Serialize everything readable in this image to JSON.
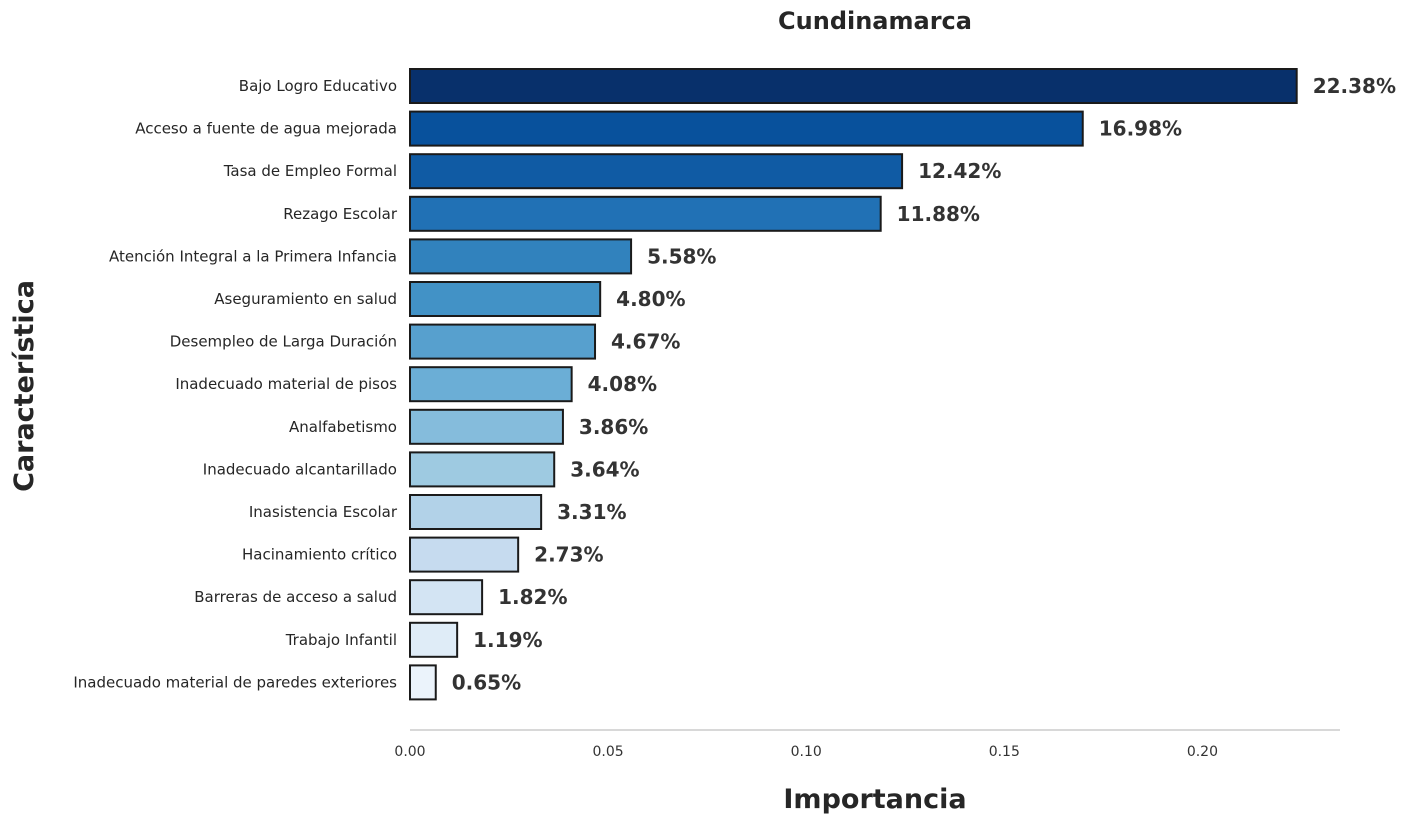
{
  "chart_data": {
    "type": "bar",
    "orientation": "horizontal",
    "title": "Cundinamarca",
    "xlabel": "Importancia",
    "ylabel": "Característica",
    "xlim": [
      0,
      0.235
    ],
    "xticks": [
      0.0,
      0.05,
      0.1,
      0.15,
      0.2
    ],
    "xtick_labels": [
      "0.00",
      "0.05",
      "0.10",
      "0.15",
      "0.20"
    ],
    "grid": false,
    "categories": [
      "Bajo Logro Educativo",
      "Acceso a fuente de agua mejorada",
      "Tasa de Empleo Formal",
      "Rezago Escolar",
      "Atención Integral a la Primera Infancia",
      "Aseguramiento en salud",
      "Desempleo de Larga Duración",
      "Inadecuado material de pisos",
      "Analfabetismo",
      "Inadecuado alcantarillado",
      "Inasistencia Escolar",
      "Hacinamiento crítico",
      "Barreras de acceso a salud",
      "Trabajo Infantil",
      "Inadecuado material de paredes exteriores"
    ],
    "values": [
      0.2238,
      0.1698,
      0.1242,
      0.1188,
      0.0558,
      0.048,
      0.0467,
      0.0408,
      0.0386,
      0.0364,
      0.0331,
      0.0273,
      0.0182,
      0.0119,
      0.0065
    ],
    "data_labels": [
      "22.38%",
      "16.98%",
      "12.42%",
      "11.88%",
      "5.58%",
      "4.80%",
      "4.67%",
      "4.08%",
      "3.86%",
      "3.64%",
      "3.31%",
      "2.73%",
      "1.82%",
      "1.19%",
      "0.65%"
    ],
    "bar_colors": [
      "#08306b",
      "#08519c",
      "#105ba4",
      "#2171b5",
      "#3182bd",
      "#4292c6",
      "#57a0ce",
      "#6baed6",
      "#85bcdc",
      "#9ecae1",
      "#b2d2e8",
      "#c6dbef",
      "#d3e4f3",
      "#dfecf7",
      "#ebf3fb"
    ],
    "bar_edge_color": "#1a1a1a"
  }
}
